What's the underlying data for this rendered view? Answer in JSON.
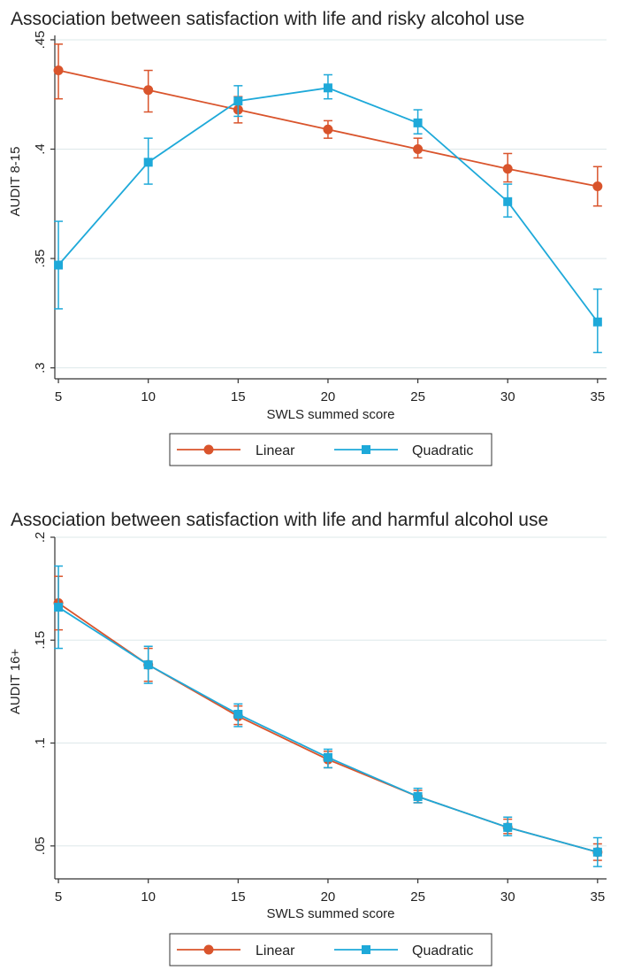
{
  "chart_data": [
    {
      "type": "line",
      "title": "Association between satisfaction with life and risky alcohol use",
      "xlabel": "SWLS summed score",
      "ylabel": "AUDIT 8-15",
      "x": [
        5,
        10,
        15,
        20,
        25,
        30,
        35
      ],
      "xticks": [
        "5",
        "10",
        "15",
        "20",
        "25",
        "30",
        "35"
      ],
      "yticks": [
        0.3,
        0.35,
        0.4,
        0.45
      ],
      "ytick_labels": [
        ".3",
        ".35",
        ".4",
        ".45"
      ],
      "ylim": [
        0.295,
        0.452
      ],
      "xlim": [
        4.8,
        35.5
      ],
      "grid": true,
      "legend_position": "bottom",
      "series": [
        {
          "name": "Linear",
          "color": "#d9542c",
          "marker": "circle",
          "values": [
            0.436,
            0.427,
            0.418,
            0.409,
            0.4,
            0.391,
            0.383
          ],
          "ci_low": [
            0.423,
            0.417,
            0.412,
            0.405,
            0.396,
            0.385,
            0.374
          ],
          "ci_high": [
            0.448,
            0.436,
            0.424,
            0.413,
            0.405,
            0.398,
            0.392
          ]
        },
        {
          "name": "Quadratic",
          "color": "#1ea9d9",
          "marker": "square",
          "values": [
            0.347,
            0.394,
            0.422,
            0.428,
            0.412,
            0.376,
            0.321
          ],
          "ci_low": [
            0.327,
            0.384,
            0.415,
            0.423,
            0.407,
            0.369,
            0.307
          ],
          "ci_high": [
            0.367,
            0.405,
            0.429,
            0.434,
            0.418,
            0.384,
            0.336
          ]
        }
      ]
    },
    {
      "type": "line",
      "title": "Association between satisfaction with life and harmful alcohol use",
      "xlabel": "SWLS summed score",
      "ylabel": "AUDIT 16+",
      "x": [
        5,
        10,
        15,
        20,
        25,
        30,
        35
      ],
      "xticks": [
        "5",
        "10",
        "15",
        "20",
        "25",
        "30",
        "35"
      ],
      "yticks": [
        0.05,
        0.1,
        0.15,
        0.2
      ],
      "ytick_labels": [
        ".05",
        ".1",
        ".15",
        ".2"
      ],
      "ylim": [
        0.034,
        0.2
      ],
      "xlim": [
        4.8,
        35.5
      ],
      "grid": true,
      "legend_position": "bottom",
      "series": [
        {
          "name": "Linear",
          "color": "#d9542c",
          "marker": "circle",
          "values": [
            0.168,
            0.138,
            0.113,
            0.092,
            0.074,
            0.059,
            0.047
          ],
          "ci_low": [
            0.155,
            0.13,
            0.109,
            0.088,
            0.071,
            0.056,
            0.043
          ],
          "ci_high": [
            0.181,
            0.146,
            0.118,
            0.096,
            0.077,
            0.063,
            0.051
          ]
        },
        {
          "name": "Quadratic",
          "color": "#1ea9d9",
          "marker": "square",
          "values": [
            0.166,
            0.138,
            0.114,
            0.093,
            0.074,
            0.059,
            0.047
          ],
          "ci_low": [
            0.146,
            0.129,
            0.108,
            0.088,
            0.071,
            0.055,
            0.04
          ],
          "ci_high": [
            0.186,
            0.147,
            0.119,
            0.097,
            0.078,
            0.064,
            0.054
          ]
        }
      ]
    }
  ]
}
